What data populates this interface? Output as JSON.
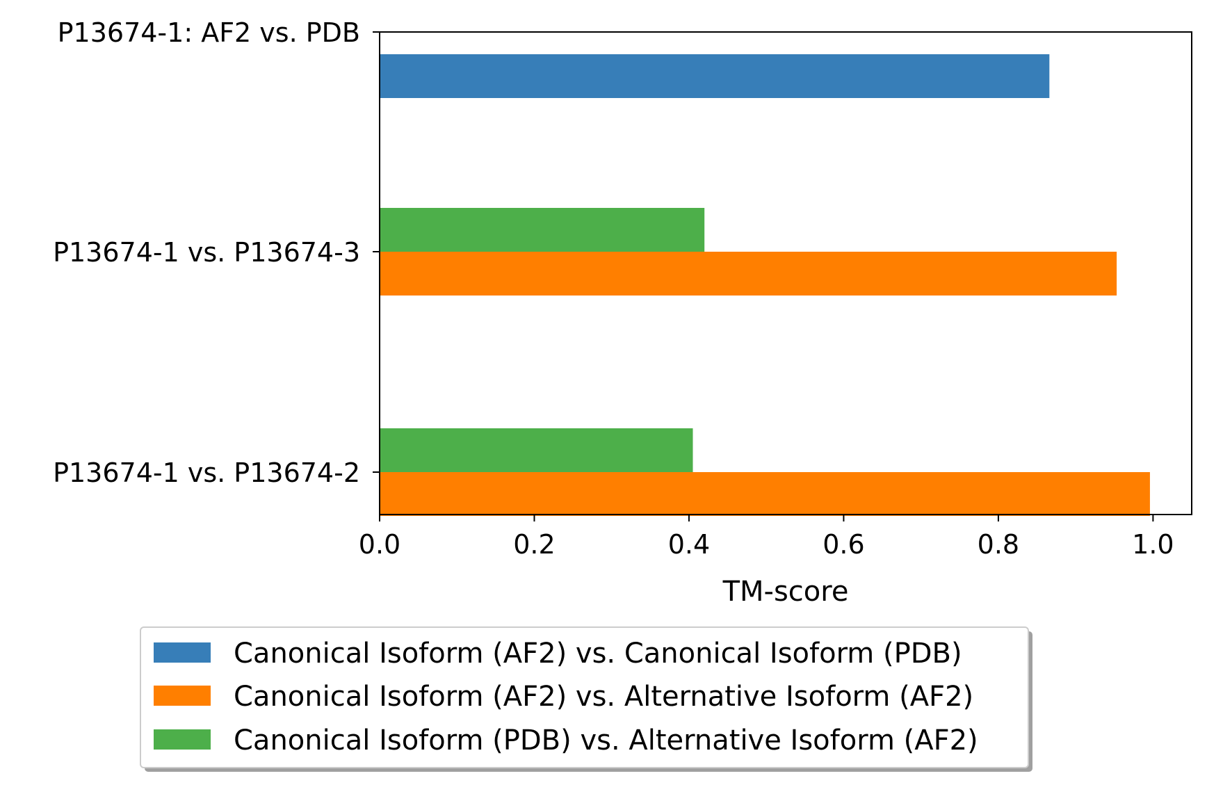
{
  "chart_data": {
    "type": "bar",
    "orientation": "horizontal",
    "title": "",
    "xlabel": "TM-score",
    "ylabel": "",
    "xlim": [
      0.0,
      1.05
    ],
    "xticks": [
      0.0,
      0.2,
      0.4,
      0.6,
      0.8,
      1.0
    ],
    "xtick_labels": [
      "0.0",
      "0.2",
      "0.4",
      "0.6",
      "0.8",
      "1.0"
    ],
    "grid": false,
    "categories": [
      "P13674-1: AF2 vs. PDB",
      "P13674-1 vs. P13674-3",
      "P13674-1 vs. P13674-2"
    ],
    "series": [
      {
        "name": "Canonical Isoform (AF2) vs. Canonical Isoform (PDB)",
        "color": "#377eb8",
        "values": [
          0.866,
          null,
          null
        ]
      },
      {
        "name": "Canonical Isoform (AF2) vs. Alternative Isoform (AF2)",
        "color": "#ff7f00",
        "values": [
          null,
          0.953,
          0.996
        ]
      },
      {
        "name": "Canonical Isoform (PDB) vs. Alternative Isoform (AF2)",
        "color": "#4daf4a",
        "values": [
          null,
          0.42,
          0.405
        ]
      }
    ],
    "legend": {
      "placement": "bottom-center",
      "entries": [
        "Canonical Isoform (AF2) vs. Canonical Isoform (PDB)",
        "Canonical Isoform (AF2) vs. Alternative Isoform (AF2)",
        "Canonical Isoform (PDB) vs. Alternative Isoform (AF2)"
      ]
    }
  }
}
